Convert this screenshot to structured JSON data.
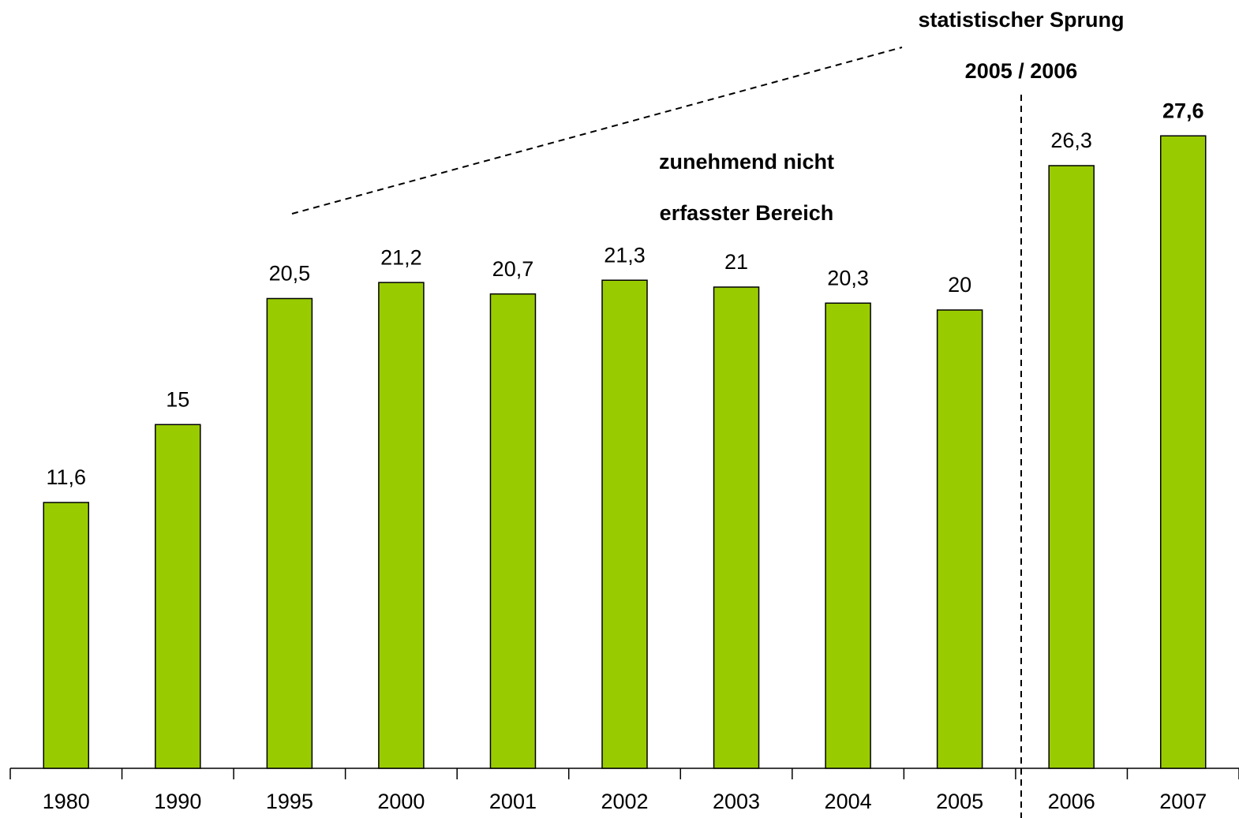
{
  "chart_data": {
    "type": "bar",
    "categories": [
      "1980",
      "1990",
      "1995",
      "2000",
      "2001",
      "2002",
      "2003",
      "2004",
      "2005",
      "2006",
      "2007"
    ],
    "values": [
      11.6,
      15,
      20.5,
      21.2,
      20.7,
      21.3,
      21,
      20.3,
      20,
      26.3,
      27.6
    ],
    "value_labels": [
      "11,6",
      "15",
      "20,5",
      "21,2",
      "20,7",
      "21,3",
      "21",
      "20,3",
      "20",
      "26,3",
      "27,6"
    ],
    "color": "#99cc00",
    "ylim": [
      0,
      30
    ],
    "annotations": [
      "statistischer Sprung",
      "2005 / 2006",
      "zunehmend nicht",
      "erfasster Bereich"
    ]
  }
}
